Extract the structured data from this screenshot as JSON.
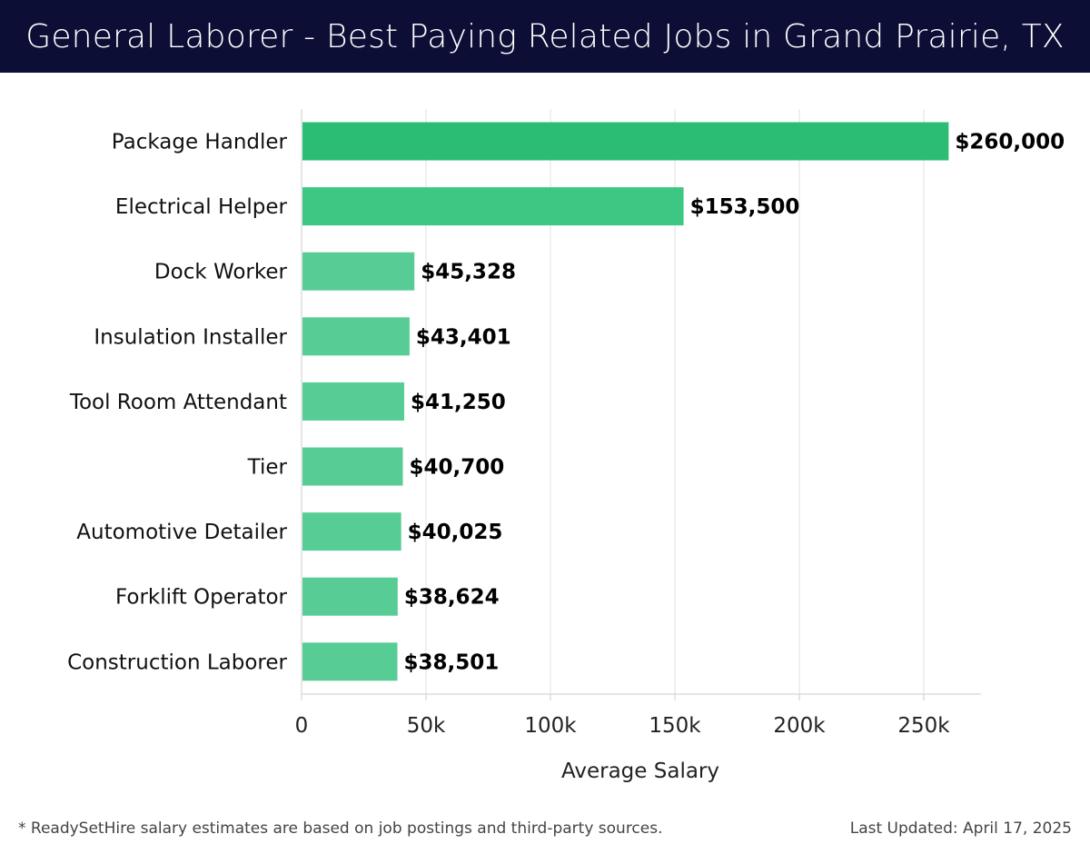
{
  "header": {
    "title": "General Laborer - Best Paying Related Jobs in Grand Prairie, TX"
  },
  "chart_data": {
    "type": "bar",
    "orientation": "horizontal",
    "title": "General Laborer - Best Paying Related Jobs in Grand Prairie, TX",
    "xlabel": "Average Salary",
    "ylabel": "",
    "xlim": [
      0,
      273000
    ],
    "x_ticks": [
      0,
      50000,
      100000,
      150000,
      200000,
      250000
    ],
    "x_tick_labels": [
      "0",
      "50k",
      "100k",
      "150k",
      "200k",
      "250k"
    ],
    "grid": "vertical",
    "categories": [
      "Package Handler",
      "Electrical Helper",
      "Dock Worker",
      "Insulation Installer",
      "Tool Room Attendant",
      "Tier",
      "Automotive Detailer",
      "Forklift Operator",
      "Construction Laborer"
    ],
    "values": [
      260000,
      153500,
      45328,
      43401,
      41250,
      40700,
      40025,
      38624,
      38501
    ],
    "data_labels": [
      "$260,000",
      "$153,500",
      "$45,328",
      "$43,401",
      "$41,250",
      "$40,700",
      "$40,025",
      "$38,624",
      "$38,501"
    ],
    "colors": {
      "top": "#2bbd74",
      "second": "#3ec683",
      "rest": "#58cc95",
      "grid": "#e2e2e2",
      "axis": "#cccccc"
    }
  },
  "footer": {
    "note": "* ReadySetHire salary estimates are based on job postings and third-party sources.",
    "updated": "Last Updated: April 17, 2025"
  }
}
